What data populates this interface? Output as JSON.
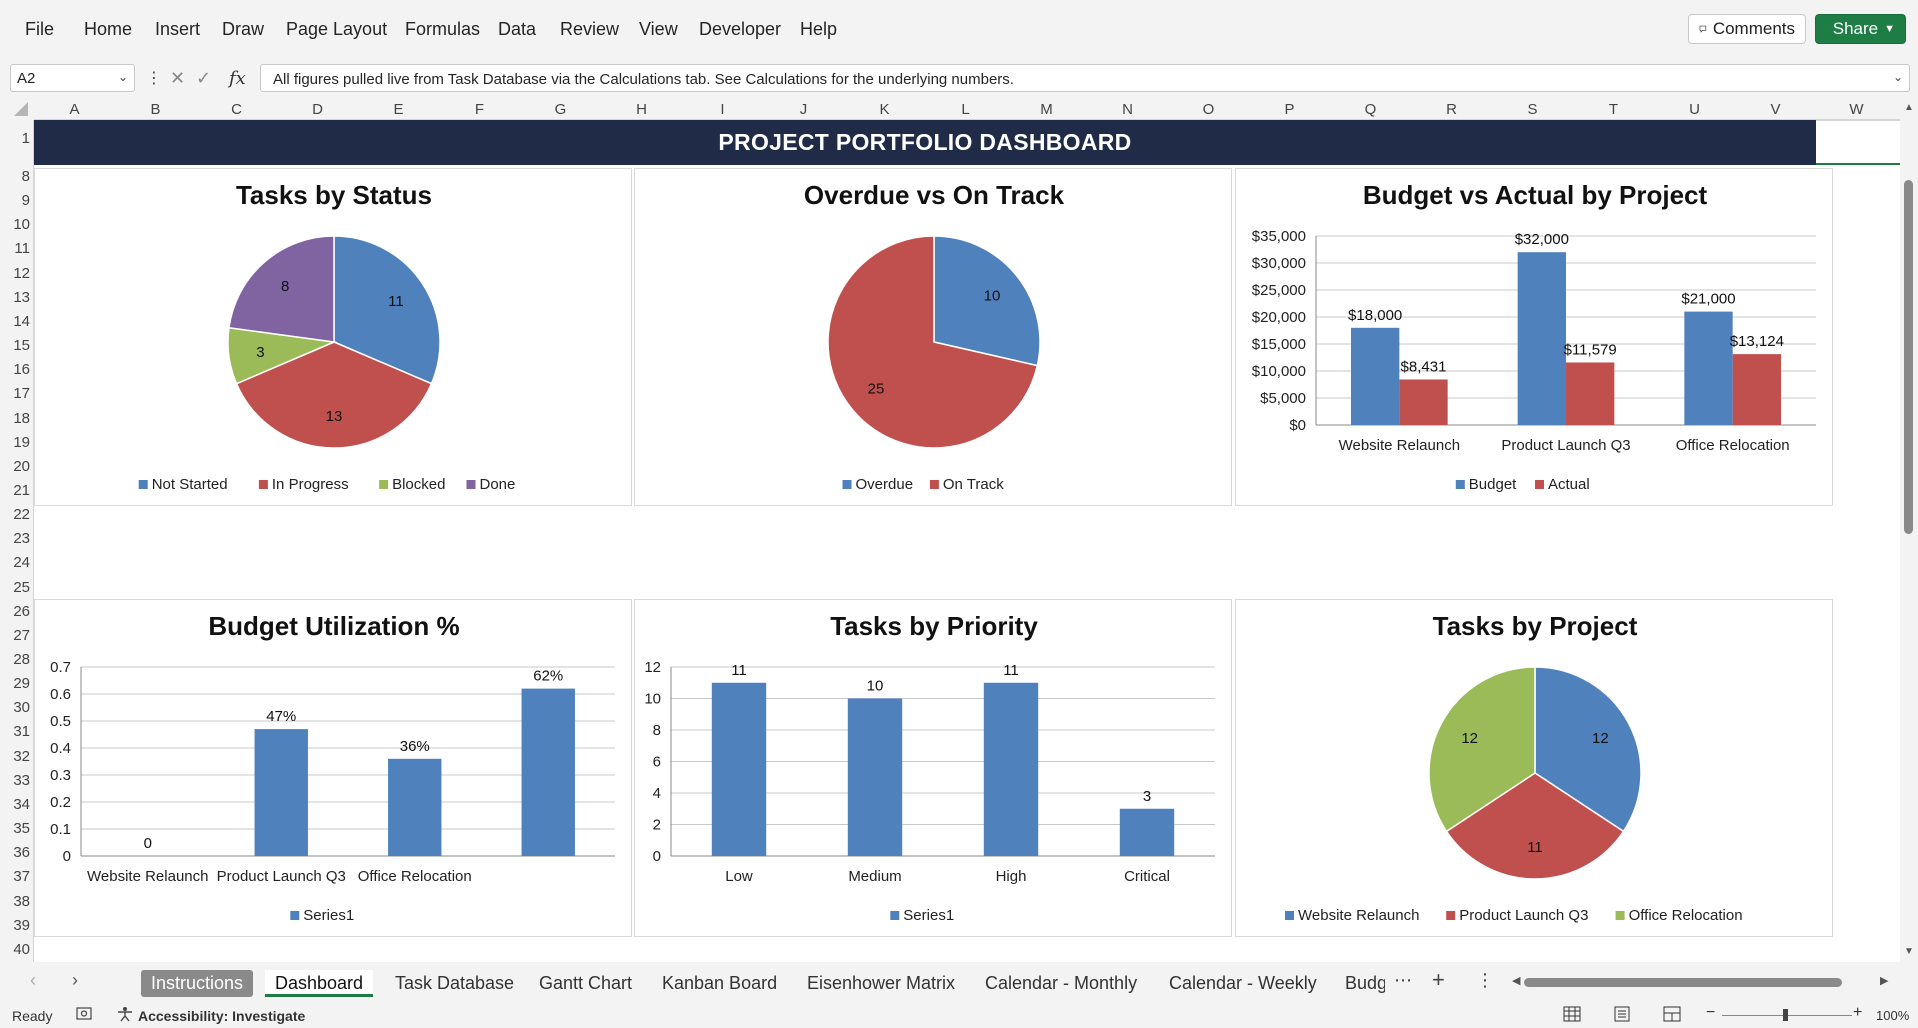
{
  "ribbon": {
    "menus": [
      "File",
      "Home",
      "Insert",
      "Draw",
      "Page Layout",
      "Formulas",
      "Data",
      "Review",
      "View",
      "Developer",
      "Help"
    ],
    "comments_label": "Comments",
    "share_label": "Share"
  },
  "formula_bar": {
    "name_box": "A2",
    "formula": "All figures pulled live from Task Database via the Calculations tab. See Calculations for the underlying numbers.",
    "fx_label": "fx"
  },
  "columns": [
    "A",
    "B",
    "C",
    "D",
    "E",
    "F",
    "G",
    "H",
    "I",
    "J",
    "K",
    "L",
    "M",
    "N",
    "O",
    "P",
    "Q",
    "R",
    "S",
    "T",
    "U",
    "V",
    "W"
  ],
  "rows": [
    "1",
    "8",
    "9",
    "10",
    "11",
    "12",
    "13",
    "14",
    "15",
    "16",
    "17",
    "18",
    "19",
    "20",
    "21",
    "22",
    "23",
    "24",
    "25",
    "26",
    "27",
    "28",
    "29",
    "30",
    "31",
    "32",
    "33",
    "34",
    "35",
    "36",
    "37",
    "38",
    "39",
    "40"
  ],
  "dashboard_title": "PROJECT PORTFOLIO DASHBOARD",
  "colors": {
    "blue": "#4f81bd",
    "red": "#c0504d",
    "green": "#9bbb59",
    "purple": "#8064a2",
    "navy": "#1f2b47",
    "excel_green": "#1e7c45"
  },
  "chart_data": [
    {
      "type": "pie",
      "title": "Tasks by Status",
      "categories": [
        "Not Started",
        "In Progress",
        "Blocked",
        "Done"
      ],
      "values": [
        11,
        13,
        3,
        8
      ],
      "legend": "bottom"
    },
    {
      "type": "pie",
      "title": "Overdue vs On Track",
      "categories": [
        "Overdue",
        "On Track"
      ],
      "values": [
        10,
        25
      ],
      "legend": "bottom"
    },
    {
      "type": "bar",
      "title": "Budget vs Actual by Project",
      "categories": [
        "Website Relaunch",
        "Product Launch Q3",
        "Office Relocation"
      ],
      "series": [
        {
          "name": "Budget",
          "values": [
            18000,
            32000,
            21000
          ],
          "labels": [
            "$18,000",
            "$32,000",
            "$21,000"
          ]
        },
        {
          "name": "Actual",
          "values": [
            8431,
            11579,
            13124
          ],
          "labels": [
            "$8,431",
            "$11,579",
            "$13,124"
          ]
        }
      ],
      "yticks": [
        "$0",
        "$5,000",
        "$10,000",
        "$15,000",
        "$20,000",
        "$25,000",
        "$30,000",
        "$35,000"
      ],
      "ylim": [
        0,
        35000
      ],
      "grid": true,
      "legend": "bottom"
    },
    {
      "type": "bar",
      "title": "Budget Utilization %",
      "categories": [
        "Website Relaunch",
        "Product Launch Q3",
        "Office Relocation",
        ""
      ],
      "series": [
        {
          "name": "Series1",
          "values": [
            0,
            0.47,
            0.36,
            0.62
          ],
          "labels": [
            "0",
            "47%",
            "36%",
            "62%"
          ]
        }
      ],
      "yticks": [
        "0",
        "0.1",
        "0.2",
        "0.3",
        "0.4",
        "0.5",
        "0.6",
        "0.7"
      ],
      "ylim": [
        0,
        0.7
      ],
      "grid": true,
      "legend": "bottom"
    },
    {
      "type": "bar",
      "title": "Tasks by Priority",
      "categories": [
        "Low",
        "Medium",
        "High",
        "Critical"
      ],
      "series": [
        {
          "name": "Series1",
          "values": [
            11,
            10,
            11,
            3
          ],
          "labels": [
            "11",
            "10",
            "11",
            "3"
          ]
        }
      ],
      "yticks": [
        "0",
        "2",
        "4",
        "6",
        "8",
        "10",
        "12"
      ],
      "ylim": [
        0,
        12
      ],
      "grid": true,
      "legend": "bottom"
    },
    {
      "type": "pie",
      "title": "Tasks by Project",
      "categories": [
        "Website Relaunch",
        "Product Launch Q3",
        "Office Relocation"
      ],
      "values": [
        12,
        11,
        12
      ],
      "legend": "bottom"
    }
  ],
  "tabs": [
    "Instructions",
    "Dashboard",
    "Task Database",
    "Gantt Chart",
    "Kanban Board",
    "Eisenhower Matrix",
    "Calendar - Monthly",
    "Calendar - Weekly",
    "Budg"
  ],
  "status": {
    "ready": "Ready",
    "accessibility": "Accessibility: Investigate",
    "zoom": "100%"
  }
}
